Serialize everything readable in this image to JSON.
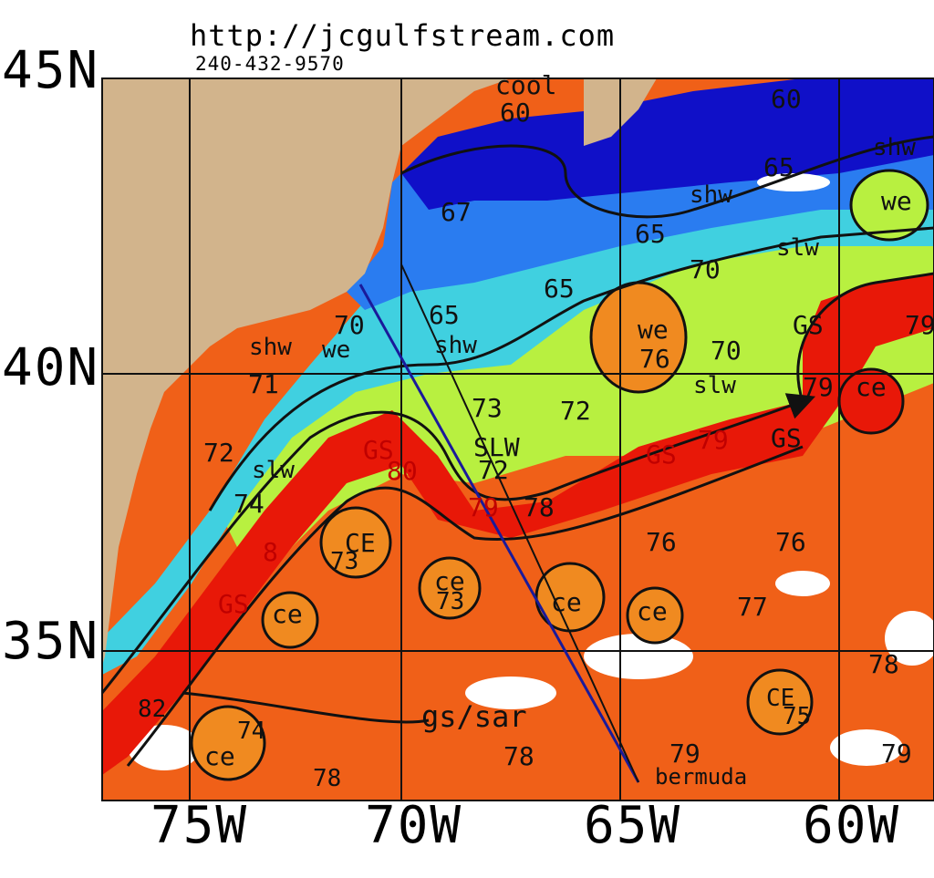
{
  "header": {
    "url": "http://jcgulfstream.com",
    "phone": "240-432-9570"
  },
  "axes": {
    "lat_labels": [
      "45N",
      "40N",
      "35N"
    ],
    "lon_labels": [
      "75W",
      "70W",
      "65W",
      "60W"
    ]
  },
  "colors": {
    "land": "#d2b48c",
    "cold_water": "#1010c8",
    "cool_water": "#2a7cf0",
    "shelf_water": "#40d0e0",
    "slope_water": "#b8f040",
    "warm_water": "#f06018",
    "gulf_stream": "#e81808",
    "eddy": "#f08a20",
    "route": "#1a1a9a"
  },
  "annotations": [
    {
      "text": "cool"
    },
    {
      "text": "60"
    },
    {
      "text": "60"
    },
    {
      "text": "shw"
    },
    {
      "text": "65"
    },
    {
      "text": "shw"
    },
    {
      "text": "we"
    },
    {
      "text": "67"
    },
    {
      "text": "65"
    },
    {
      "text": "slw"
    },
    {
      "text": "70"
    },
    {
      "text": "65"
    },
    {
      "text": "65"
    },
    {
      "text": "70"
    },
    {
      "text": "we"
    },
    {
      "text": "76"
    },
    {
      "text": "70"
    },
    {
      "text": "GS"
    },
    {
      "text": "79"
    },
    {
      "text": "shw"
    },
    {
      "text": "we"
    },
    {
      "text": "shw"
    },
    {
      "text": "slw"
    },
    {
      "text": "79"
    },
    {
      "text": "ce"
    },
    {
      "text": "71"
    },
    {
      "text": "73"
    },
    {
      "text": "72"
    },
    {
      "text": "72"
    },
    {
      "text": "GS"
    },
    {
      "text": "SLW"
    },
    {
      "text": "GS"
    },
    {
      "text": "79"
    },
    {
      "text": "GS"
    },
    {
      "text": "slw"
    },
    {
      "text": "80"
    },
    {
      "text": "72"
    },
    {
      "text": "74"
    },
    {
      "text": "79"
    },
    {
      "text": "78"
    },
    {
      "text": "CE"
    },
    {
      "text": "76"
    },
    {
      "text": "76"
    },
    {
      "text": "8"
    },
    {
      "text": "73"
    },
    {
      "text": "ce"
    },
    {
      "text": "73"
    },
    {
      "text": "GS"
    },
    {
      "text": "ce"
    },
    {
      "text": "ce"
    },
    {
      "text": "ce"
    },
    {
      "text": "77"
    },
    {
      "text": "78"
    },
    {
      "text": "CE"
    },
    {
      "text": "75"
    },
    {
      "text": "82"
    },
    {
      "text": "gs/sar"
    },
    {
      "text": "74"
    },
    {
      "text": "ce"
    },
    {
      "text": "78"
    },
    {
      "text": "79"
    },
    {
      "text": "79"
    },
    {
      "text": "78"
    },
    {
      "text": "bermuda"
    }
  ]
}
